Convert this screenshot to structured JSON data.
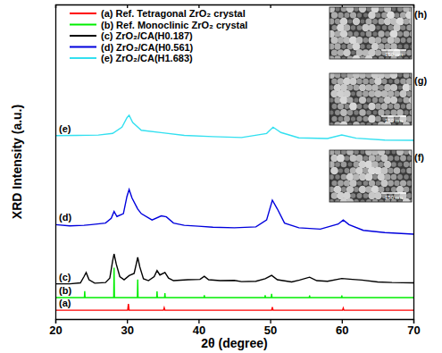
{
  "chart_data": {
    "type": "line",
    "x_label": "2θ (degree)",
    "y_label": "XRD Intensity (a.u.)",
    "xlim": [
      20,
      70
    ],
    "xticks": [
      20,
      30,
      40,
      50,
      60,
      70
    ],
    "ylim": [
      0,
      100
    ],
    "tick_labels": "x",
    "grid": false,
    "legend": "top left",
    "series": [
      {
        "name": "(a) Ref. Tetragonal ZrO₂ crystal",
        "color": "#ff0000",
        "x": [
          20,
          30.1,
          30.2,
          30.3,
          35.1,
          35.2,
          35.3,
          50.2,
          50.3,
          50.4,
          60.1,
          60.2,
          60.3,
          70
        ],
        "values": [
          2.8,
          2.8,
          4.8,
          2.8,
          2.8,
          3.6,
          2.8,
          2.8,
          3.8,
          2.8,
          2.8,
          3.5,
          2.8,
          2.8
        ]
      },
      {
        "name": "(b) Ref. Monoclinic ZrO₂ crystal",
        "color": "#00ee00",
        "x": [
          20,
          24.05,
          24.1,
          24.15,
          28.15,
          28.2,
          28.25,
          31.45,
          31.5,
          31.55,
          34.15,
          34.2,
          34.25,
          35.25,
          35.3,
          35.35,
          40.75,
          40.8,
          40.85,
          49.25,
          49.3,
          49.35,
          50.15,
          50.2,
          50.25,
          55.45,
          55.5,
          55.55,
          59.95,
          60.0,
          60.05,
          70
        ],
        "values": [
          6.8,
          6.8,
          8.9,
          6.8,
          6.8,
          16.3,
          6.8,
          6.8,
          12.6,
          6.8,
          6.8,
          8.8,
          6.8,
          6.8,
          8.2,
          6.8,
          6.8,
          7.6,
          6.8,
          6.8,
          7.6,
          6.8,
          6.8,
          8.0,
          6.8,
          6.8,
          7.5,
          6.8,
          6.8,
          7.5,
          6.8,
          6.8
        ]
      },
      {
        "name": "(c) ZrO₂/CA(H0.187)",
        "color": "#000000",
        "x": [
          20,
          22,
          23.5,
          24.0,
          24.3,
          24.7,
          25.5,
          27,
          27.6,
          28.0,
          28.2,
          28.5,
          29,
          29.6,
          30.3,
          31,
          31.3,
          31.5,
          31.8,
          32.3,
          33,
          33.8,
          34.2,
          34.6,
          35.3,
          35.8,
          36.5,
          38.5,
          40.2,
          40.8,
          41.4,
          43,
          45,
          46,
          48,
          49.3,
          50.2,
          51,
          53,
          54.1,
          55.5,
          56.5,
          58,
          60,
          61.5,
          62.8,
          65,
          67,
          70
        ],
        "values": [
          11.2,
          11.2,
          11.5,
          13.5,
          14.8,
          12.5,
          11.4,
          11.6,
          13,
          18.5,
          20.7,
          17.5,
          13.5,
          12.5,
          13.8,
          14.5,
          17.5,
          19.6,
          16.5,
          12.8,
          12.2,
          13.5,
          15.4,
          14,
          14.8,
          13,
          12.2,
          12.5,
          12.6,
          13.6,
          12.5,
          12.2,
          12.3,
          11.9,
          12,
          12.8,
          13.9,
          12.5,
          11.8,
          12.4,
          13.3,
          12.2,
          12,
          12.9,
          12.6,
          12.4,
          11.8,
          11.6,
          11.5
        ]
      },
      {
        "name": "(d) ZrO₂/CA(H0.561)",
        "color": "#0000dd",
        "x": [
          20,
          22,
          24,
          25,
          27,
          27.8,
          28.2,
          28.6,
          29.5,
          30.0,
          30.3,
          30.7,
          31.5,
          32,
          33.5,
          34.8,
          35.5,
          36.5,
          38,
          40,
          42,
          45,
          48,
          49.5,
          50.3,
          51,
          52,
          54,
          57,
          59.5,
          60.2,
          61,
          63,
          66,
          70
        ],
        "values": [
          30,
          29.6,
          29.8,
          30,
          30.5,
          32,
          34.2,
          32.6,
          33.5,
          39,
          41.2,
          38.5,
          35,
          33.5,
          31.5,
          32.8,
          32.5,
          30.5,
          29.8,
          29.5,
          29.2,
          29,
          29.3,
          31.5,
          37.8,
          35,
          30.5,
          29,
          28.6,
          30.2,
          31.5,
          30,
          28.2,
          27.5,
          27
        ]
      },
      {
        "name": "(e) ZrO₂/CA(H1.683)",
        "color": "#33e0f0",
        "x": [
          20,
          23,
          26,
          28,
          29.3,
          30.0,
          30.3,
          30.8,
          32,
          35,
          38,
          42,
          46,
          49.5,
          50.4,
          51.5,
          54,
          58,
          60,
          62,
          66,
          70
        ],
        "values": [
          58.3,
          58.4,
          58.5,
          59,
          61,
          64,
          64.8,
          62.5,
          60,
          59.2,
          58.4,
          58,
          57.7,
          59,
          61,
          59.3,
          57.6,
          57.4,
          58.5,
          57.5,
          56.9,
          56.8
        ]
      }
    ],
    "annotations": [
      "(a)",
      "(b)",
      "(c)",
      "(d)",
      "(e)"
    ],
    "insets": [
      {
        "label": "(h)",
        "scale_bar": "150 nm"
      },
      {
        "label": "(g)",
        "scale_bar": "150 nm"
      },
      {
        "label": "(f)",
        "scale_bar": "150 nm"
      }
    ]
  }
}
